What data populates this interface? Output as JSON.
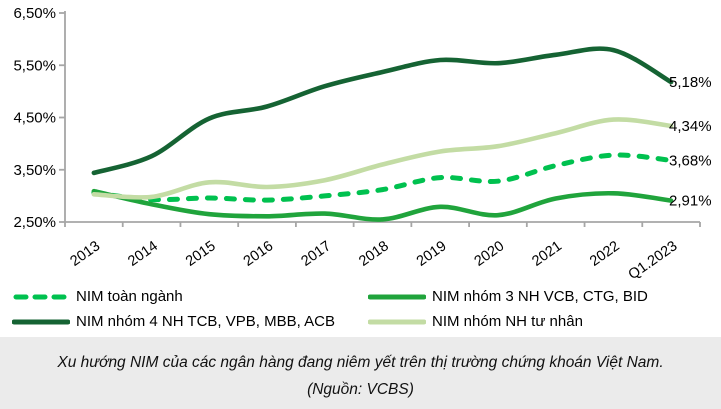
{
  "chart_data": {
    "type": "line",
    "title": "",
    "xlabel": "",
    "ylabel": "",
    "categories": [
      "2013",
      "2014",
      "2015",
      "2016",
      "2017",
      "2018",
      "2019",
      "2020",
      "2021",
      "2022",
      "Q1.2023"
    ],
    "ylim": [
      2.5,
      6.5
    ],
    "grid": false,
    "legend_position": "bottom",
    "y_ticks": [
      {
        "value": 6.5,
        "label": "6,50%"
      },
      {
        "value": 5.5,
        "label": "5,50%"
      },
      {
        "value": 4.5,
        "label": "4,50%"
      },
      {
        "value": 3.5,
        "label": "3,50%"
      },
      {
        "value": 2.5,
        "label": "2,50%"
      }
    ],
    "series": [
      {
        "name": "NIM toàn ngành",
        "style": "dashed",
        "color": "#00C14F",
        "values": [
          3.06,
          2.93,
          2.96,
          2.92,
          3.0,
          3.12,
          3.35,
          3.28,
          3.58,
          3.78,
          3.68
        ],
        "end_label": "3,68%"
      },
      {
        "name": "NIM nhóm 3 NH VCB, CTG, BID",
        "style": "solid",
        "color": "#20A43C",
        "values": [
          3.09,
          2.84,
          2.65,
          2.61,
          2.66,
          2.55,
          2.79,
          2.63,
          2.95,
          3.05,
          2.91
        ],
        "end_label": "2,91%"
      },
      {
        "name": "NIM nhóm 4 NH TCB, VPB, MBB, ACB",
        "style": "solid",
        "color": "#156333",
        "values": [
          3.44,
          3.76,
          4.48,
          4.71,
          5.1,
          5.37,
          5.6,
          5.54,
          5.7,
          5.79,
          5.18
        ],
        "end_label": "5,18%"
      },
      {
        "name": "NIM nhóm NH tư nhân",
        "style": "solid",
        "color": "#C3DCA4",
        "values": [
          3.03,
          2.98,
          3.26,
          3.17,
          3.3,
          3.6,
          3.85,
          3.95,
          4.2,
          4.46,
          4.34
        ],
        "end_label": "4,34%"
      }
    ],
    "axis_color": "#A6A6A6",
    "text_color": "#000000"
  },
  "caption": {
    "text": "Xu hướng NIM của các ngân hàng đang niêm yết trên thị trường chứng khoán Việt Nam. (Nguồn: VCBS)",
    "background": "#EBEBEB"
  }
}
